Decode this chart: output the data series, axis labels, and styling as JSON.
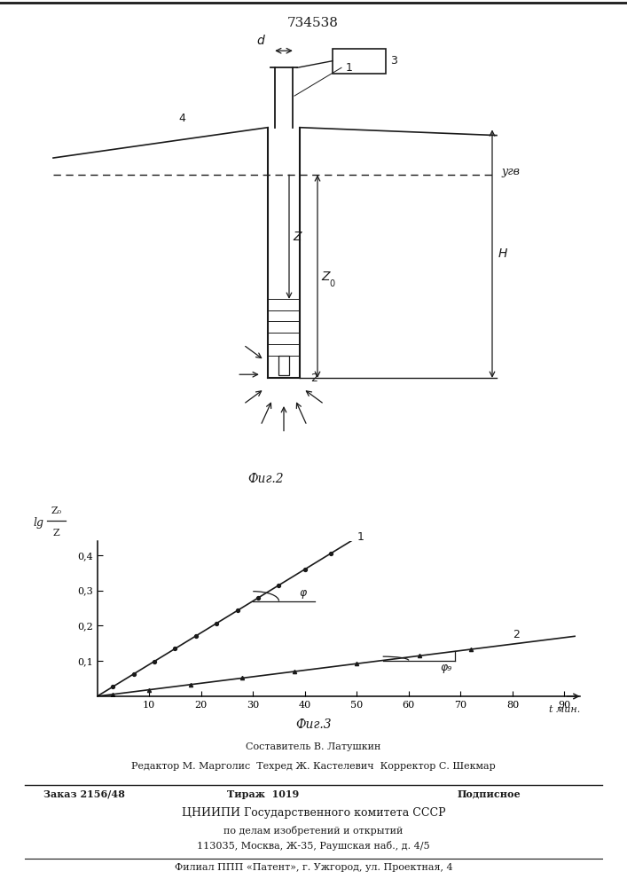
{
  "patent_number": "734538",
  "fig2_label": "Фиг.2",
  "fig3_label": "Фиг.3",
  "ugv_label": "угв",
  "phi_label": "φ",
  "phi_q_label": "φ₉",
  "ytick_labels": [
    "0,1",
    "0,2",
    "0,3",
    "0,4"
  ],
  "yticks": [
    0.1,
    0.2,
    0.3,
    0.4
  ],
  "xticks": [
    10,
    20,
    30,
    40,
    50,
    60,
    70,
    80,
    90
  ],
  "slope1": 0.009,
  "slope2": 0.00185,
  "footer_line1": "Составитель В. Латушкин",
  "footer_line2": "Редактор М. Марголис  Техред Ж. Кастелевич  Корректор С. Шекмар",
  "footer_line3a": "Заказ 2156/48",
  "footer_line3b": "Тираж  1019",
  "footer_line3c": "Подписное",
  "footer_line4": "ЦНИИПИ Государственного комитета СССР",
  "footer_line5": "по делам изобретений и открытий",
  "footer_line6": "113035, Москва, Ж-35, Раушская наб., д. 4/5",
  "footer_line7": "Филиал ППП «Патент», г. Ужгород, ул. Проектная, 4",
  "lc": "#1a1a1a"
}
